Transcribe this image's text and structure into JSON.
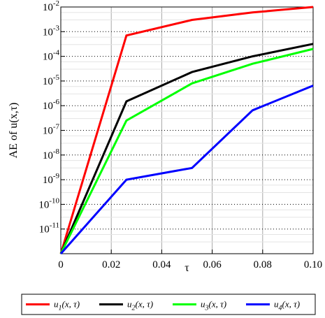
{
  "chart_data": {
    "type": "line",
    "xlabel": "τ",
    "ylabel": "AE of u(x,τ)",
    "x_scale": "linear",
    "y_scale": "log",
    "xlim": [
      0,
      0.1
    ],
    "ylim": [
      1e-12,
      0.01
    ],
    "x_ticks": [
      0,
      0.02,
      0.04,
      0.06,
      0.08,
      0.1
    ],
    "x_tick_labels": [
      "0",
      "0.02",
      "0.04",
      "0.06",
      "0.08",
      "0.10"
    ],
    "y_ticks_exponents": [
      -2,
      -3,
      -4,
      -5,
      -6,
      -7,
      -8,
      -9,
      -10,
      -11
    ],
    "grid": true,
    "legend_position": "bottom",
    "series": [
      {
        "name": "u1(x, τ)",
        "label_base": "u",
        "label_sub": "1",
        "label_args": "(x, τ)",
        "color": "#ff0000",
        "x": [
          0,
          0.026,
          0.052,
          0.076,
          0.1
        ],
        "y": [
          1e-12,
          0.0007,
          0.003,
          0.006,
          0.01
        ]
      },
      {
        "name": "u2(x, τ)",
        "label_base": "u",
        "label_sub": "2",
        "label_args": "(x, τ)",
        "color": "#000000",
        "x": [
          0,
          0.026,
          0.052,
          0.076,
          0.1
        ],
        "y": [
          1e-12,
          1.5e-06,
          2.3e-05,
          0.0001,
          0.00032
        ]
      },
      {
        "name": "u3(x, τ)",
        "label_base": "u",
        "label_sub": "3",
        "label_args": "(x, τ)",
        "color": "#00ff00",
        "x": [
          0,
          0.026,
          0.052,
          0.076,
          0.1
        ],
        "y": [
          1e-12,
          2.5e-07,
          8e-06,
          5e-05,
          0.0002
        ]
      },
      {
        "name": "u4(x, τ)",
        "label_base": "u",
        "label_sub": "4",
        "label_args": "(x, τ)",
        "color": "#0000ff",
        "x": [
          0,
          0.026,
          0.052,
          0.076,
          0.1
        ],
        "y": [
          1e-12,
          1e-09,
          3e-09,
          6.5e-07,
          6.5e-06
        ]
      }
    ]
  }
}
